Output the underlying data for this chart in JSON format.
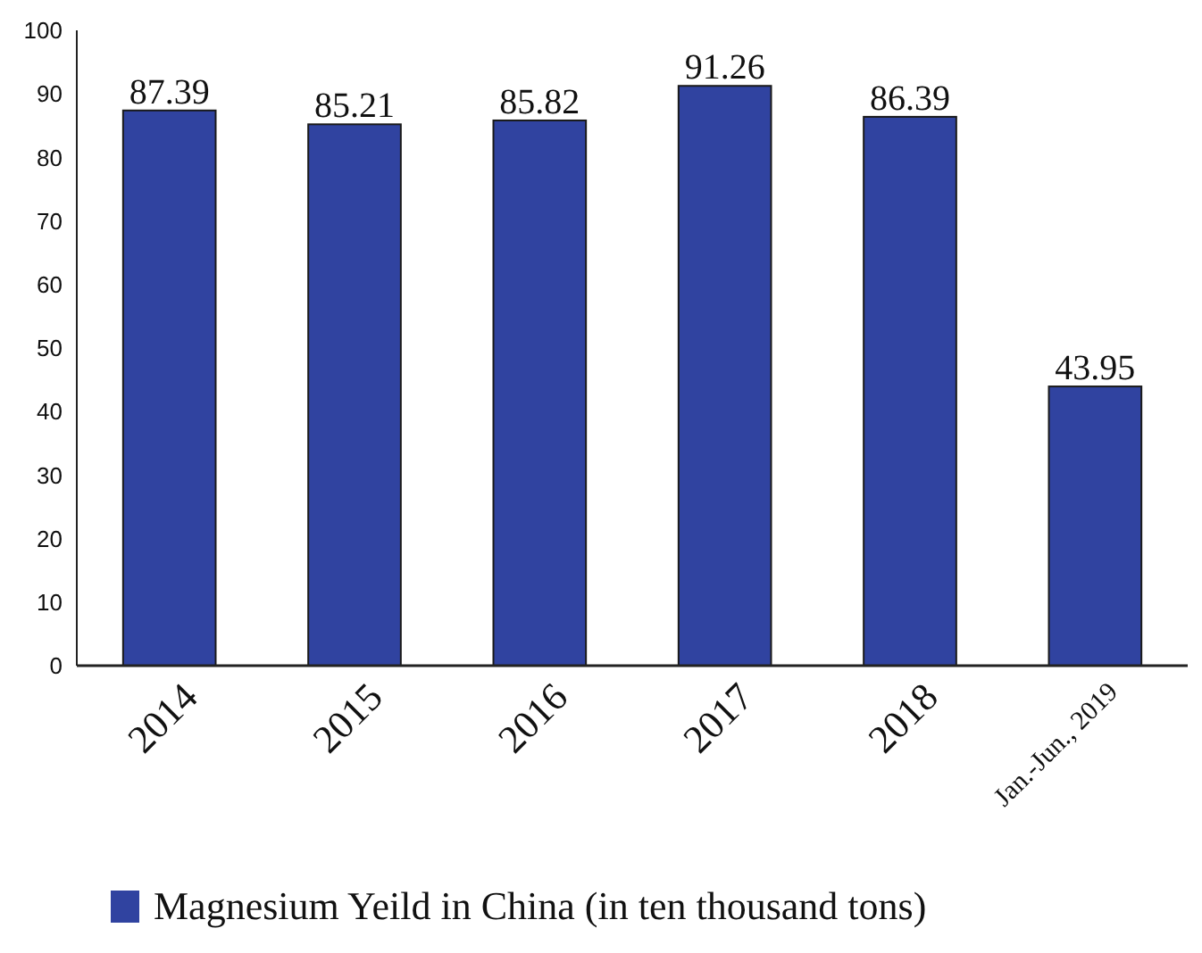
{
  "chart_data": {
    "type": "bar",
    "categories": [
      "2014",
      "2015",
      "2016",
      "2017",
      "2018",
      "Jan.-Jun., 2019"
    ],
    "series": [
      {
        "name": "Magnesium Yeild in China (in ten thousand tons)",
        "color": "#3043a0",
        "values": [
          87.39,
          85.21,
          85.82,
          91.26,
          86.39,
          43.95
        ]
      }
    ],
    "ylim": [
      0,
      100
    ],
    "yticks": [
      0,
      10,
      20,
      30,
      40,
      50,
      60,
      70,
      80,
      90,
      100
    ],
    "data_labels": true,
    "legend": "bottom",
    "grid": false
  }
}
